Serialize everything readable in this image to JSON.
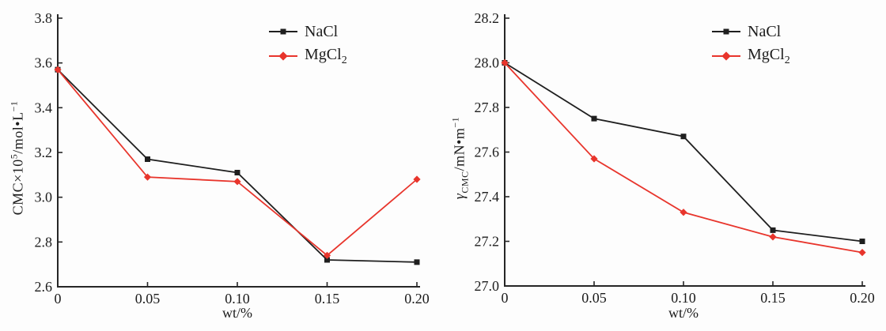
{
  "page": {
    "background": "#fdfdfd",
    "axis_color": "#262626",
    "text_color": "#1c1c1c"
  },
  "chart_data": [
    {
      "type": "line",
      "panel": "left",
      "xlabel": "wt/%",
      "ylabel_parts": [
        {
          "t": "CMC×10"
        },
        {
          "t": "5",
          "sup": true
        },
        {
          "t": "/mol•L"
        },
        {
          "t": "−1",
          "sup": true
        }
      ],
      "x": [
        0,
        0.05,
        0.1,
        0.15,
        0.2
      ],
      "x_tick_labels": [
        "0",
        "0.05",
        "0.10",
        "0.15",
        "0.20"
      ],
      "xlim": [
        0,
        0.2
      ],
      "ylim": [
        2.6,
        3.8
      ],
      "y_ticks": [
        2.6,
        2.8,
        3.0,
        3.2,
        3.4,
        3.6,
        3.8
      ],
      "y_tick_labels": [
        "2.6",
        "2.8",
        "3.0",
        "3.2",
        "3.4",
        "3.6",
        "3.8"
      ],
      "grid": false,
      "legend_position": "top-right-inside",
      "series": [
        {
          "name": "NaCl",
          "name_sub": "",
          "color": "#1f1f1f",
          "marker": "square",
          "values": [
            3.57,
            3.17,
            3.11,
            2.72,
            2.71
          ]
        },
        {
          "name": "MgCl",
          "name_sub": "2",
          "color": "#e8352c",
          "marker": "diamond",
          "values": [
            3.57,
            3.09,
            3.07,
            2.74,
            3.08
          ]
        }
      ]
    },
    {
      "type": "line",
      "panel": "right",
      "xlabel": "wt/%",
      "ylabel_parts": [
        {
          "t": "γ",
          "italic": true
        },
        {
          "t": "CMC",
          "sub": true
        },
        {
          "t": "/mN•m"
        },
        {
          "t": "−1",
          "sup": true
        }
      ],
      "x": [
        0,
        0.05,
        0.1,
        0.15,
        0.2
      ],
      "x_tick_labels": [
        "0",
        "0.05",
        "0.10",
        "0.15",
        "0.20"
      ],
      "xlim": [
        0,
        0.2
      ],
      "ylim": [
        27.0,
        28.2
      ],
      "y_ticks": [
        27.0,
        27.2,
        27.4,
        27.6,
        27.8,
        28.0,
        28.2
      ],
      "y_tick_labels": [
        "27.0",
        "27.2",
        "27.4",
        "27.6",
        "27.8",
        "28.0",
        "28.2"
      ],
      "grid": false,
      "legend_position": "top-right-inside",
      "series": [
        {
          "name": "NaCl",
          "name_sub": "",
          "color": "#1f1f1f",
          "marker": "square",
          "values": [
            28.0,
            27.75,
            27.67,
            27.25,
            27.2
          ]
        },
        {
          "name": "MgCl",
          "name_sub": "2",
          "color": "#e8352c",
          "marker": "diamond",
          "values": [
            28.0,
            27.57,
            27.33,
            27.22,
            27.15
          ]
        }
      ]
    }
  ]
}
